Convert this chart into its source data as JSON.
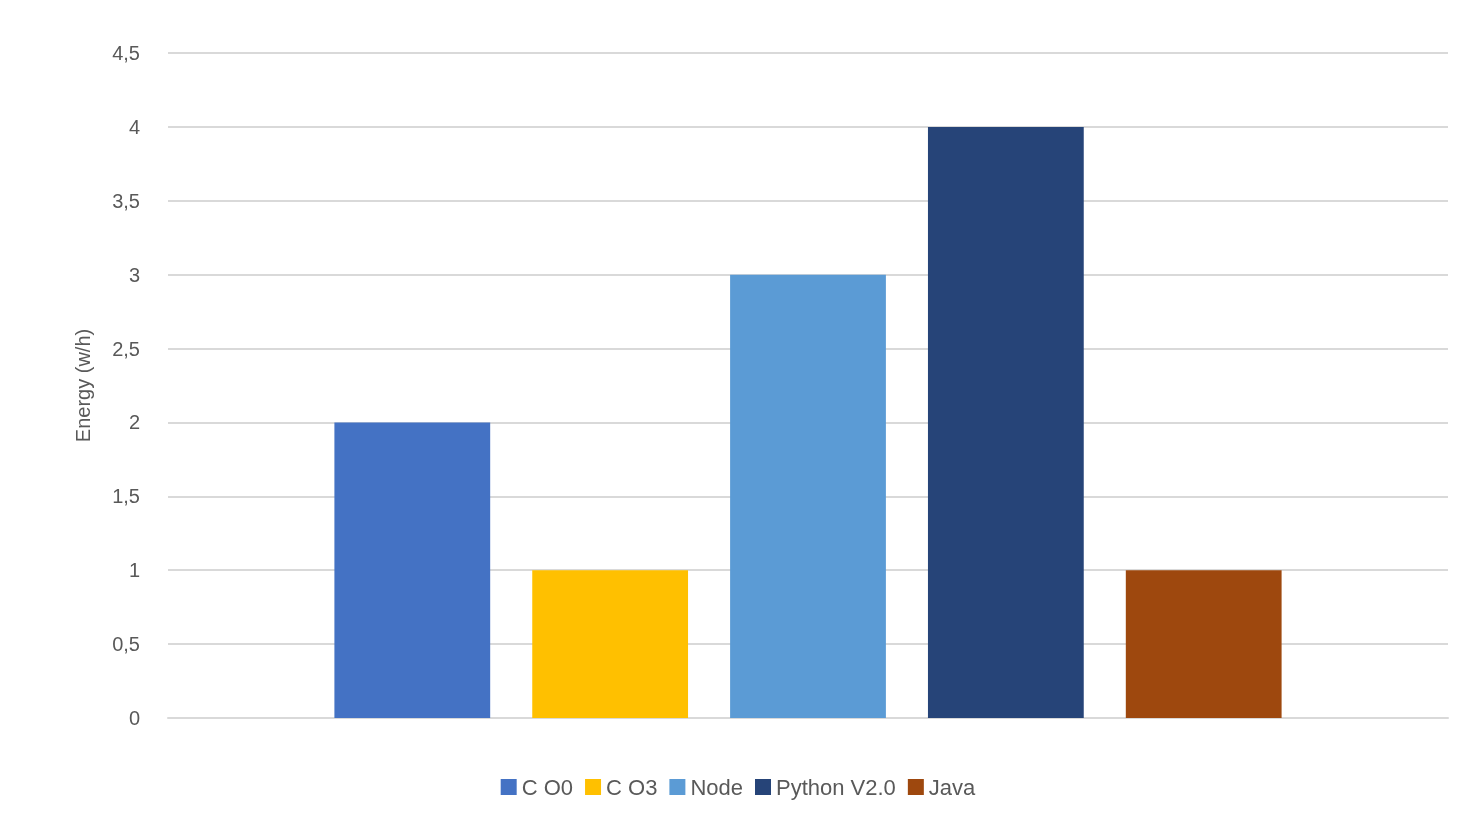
{
  "chart_data": {
    "type": "bar",
    "ylabel": "Energy (w/h)",
    "categories": [
      null
    ],
    "series": [
      {
        "name": "C O0",
        "color": "#4472c4",
        "values": [
          2
        ]
      },
      {
        "name": "C O3",
        "color": "#ffc000",
        "values": [
          1
        ]
      },
      {
        "name": "Node",
        "color": "#5b9bd5",
        "values": [
          3
        ]
      },
      {
        "name": "Python V2.0",
        "color": "#264478",
        "values": [
          4
        ]
      },
      {
        "name": "Java",
        "color": "#9e480e",
        "values": [
          1
        ]
      }
    ],
    "ylim": [
      0,
      4.5
    ],
    "yticks": [
      0,
      {
        "value": 0.5,
        "label": "0,5"
      },
      1,
      {
        "value": 1.5,
        "label": "1,5"
      },
      2,
      {
        "value": 2.5,
        "label": "2,5"
      },
      3,
      {
        "value": 3.5,
        "label": "3,5"
      },
      4,
      {
        "value": 4.5,
        "label": "4,5"
      }
    ],
    "grid": "y",
    "legend": "bottom"
  }
}
